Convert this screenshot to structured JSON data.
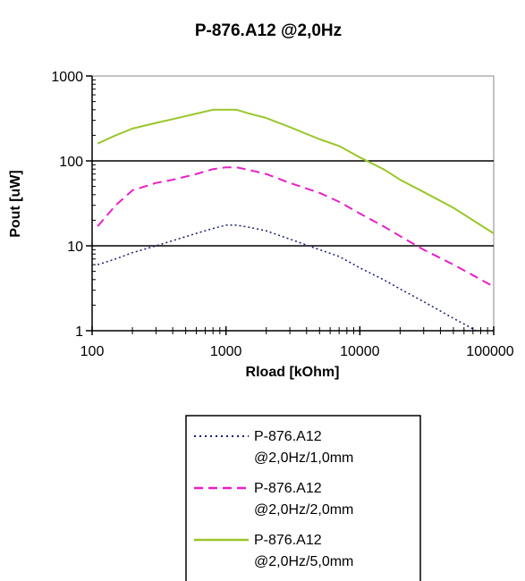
{
  "chart_data": {
    "type": "line",
    "title": "P-876.A12 @2,0Hz",
    "xlabel": "Rload [kOhm]",
    "ylabel": "Pout [uW]",
    "x_scale": "log",
    "y_scale": "log",
    "xlim": [
      100,
      100000
    ],
    "ylim": [
      1,
      1000
    ],
    "x_ticks": [
      "100",
      "1000",
      "10000",
      "100000"
    ],
    "y_ticks": [
      "1",
      "10",
      "100",
      "1000"
    ],
    "grid": "horizontal major lines",
    "legend_position": "bottom",
    "series": [
      {
        "name": "P-876.A12 @2,0Hz/1,0mm",
        "color": "#1a1a6e",
        "dash": "dotted",
        "x": [
          110,
          150,
          200,
          300,
          400,
          600,
          800,
          1000,
          1200,
          1500,
          2000,
          3000,
          5000,
          7000,
          10000,
          15000,
          20000,
          30000,
          50000,
          70000,
          100000
        ],
        "y": [
          6,
          7,
          8.3,
          10,
          11.5,
          14,
          16,
          17.5,
          17.5,
          16.5,
          15,
          12,
          9,
          7.5,
          5.5,
          4,
          3.1,
          2.2,
          1.4,
          1.05,
          0.75
        ]
      },
      {
        "name": "P-876.A12 @2,0Hz/2,0mm",
        "color": "#e81ec8",
        "dash": "dashed",
        "x": [
          110,
          150,
          200,
          300,
          400,
          600,
          800,
          1000,
          1200,
          1500,
          2000,
          3000,
          5000,
          7000,
          10000,
          15000,
          20000,
          30000,
          50000,
          70000,
          100000
        ],
        "y": [
          17,
          30,
          45,
          55,
          60,
          70,
          80,
          84,
          84,
          78,
          70,
          55,
          42,
          33,
          24,
          17,
          13,
          9,
          6,
          4.5,
          3.3
        ]
      },
      {
        "name": "P-876.A12 @2,0Hz/5,0mm",
        "color": "#9ac62a",
        "dash": "solid",
        "x": [
          110,
          150,
          200,
          300,
          400,
          600,
          800,
          1000,
          1200,
          1500,
          2000,
          3000,
          5000,
          7000,
          10000,
          15000,
          20000,
          30000,
          50000,
          70000,
          100000
        ],
        "y": [
          160,
          200,
          240,
          280,
          310,
          360,
          400,
          400,
          400,
          360,
          320,
          250,
          180,
          150,
          110,
          80,
          60,
          43,
          28,
          20,
          14
        ]
      }
    ],
    "legend": [
      {
        "line1": "P-876.A12",
        "line2": "@2,0Hz/1,0mm"
      },
      {
        "line1": "P-876.A12",
        "line2": "@2,0Hz/2,0mm"
      },
      {
        "line1": "P-876.A12",
        "line2": "@2,0Hz/5,0mm"
      }
    ]
  }
}
